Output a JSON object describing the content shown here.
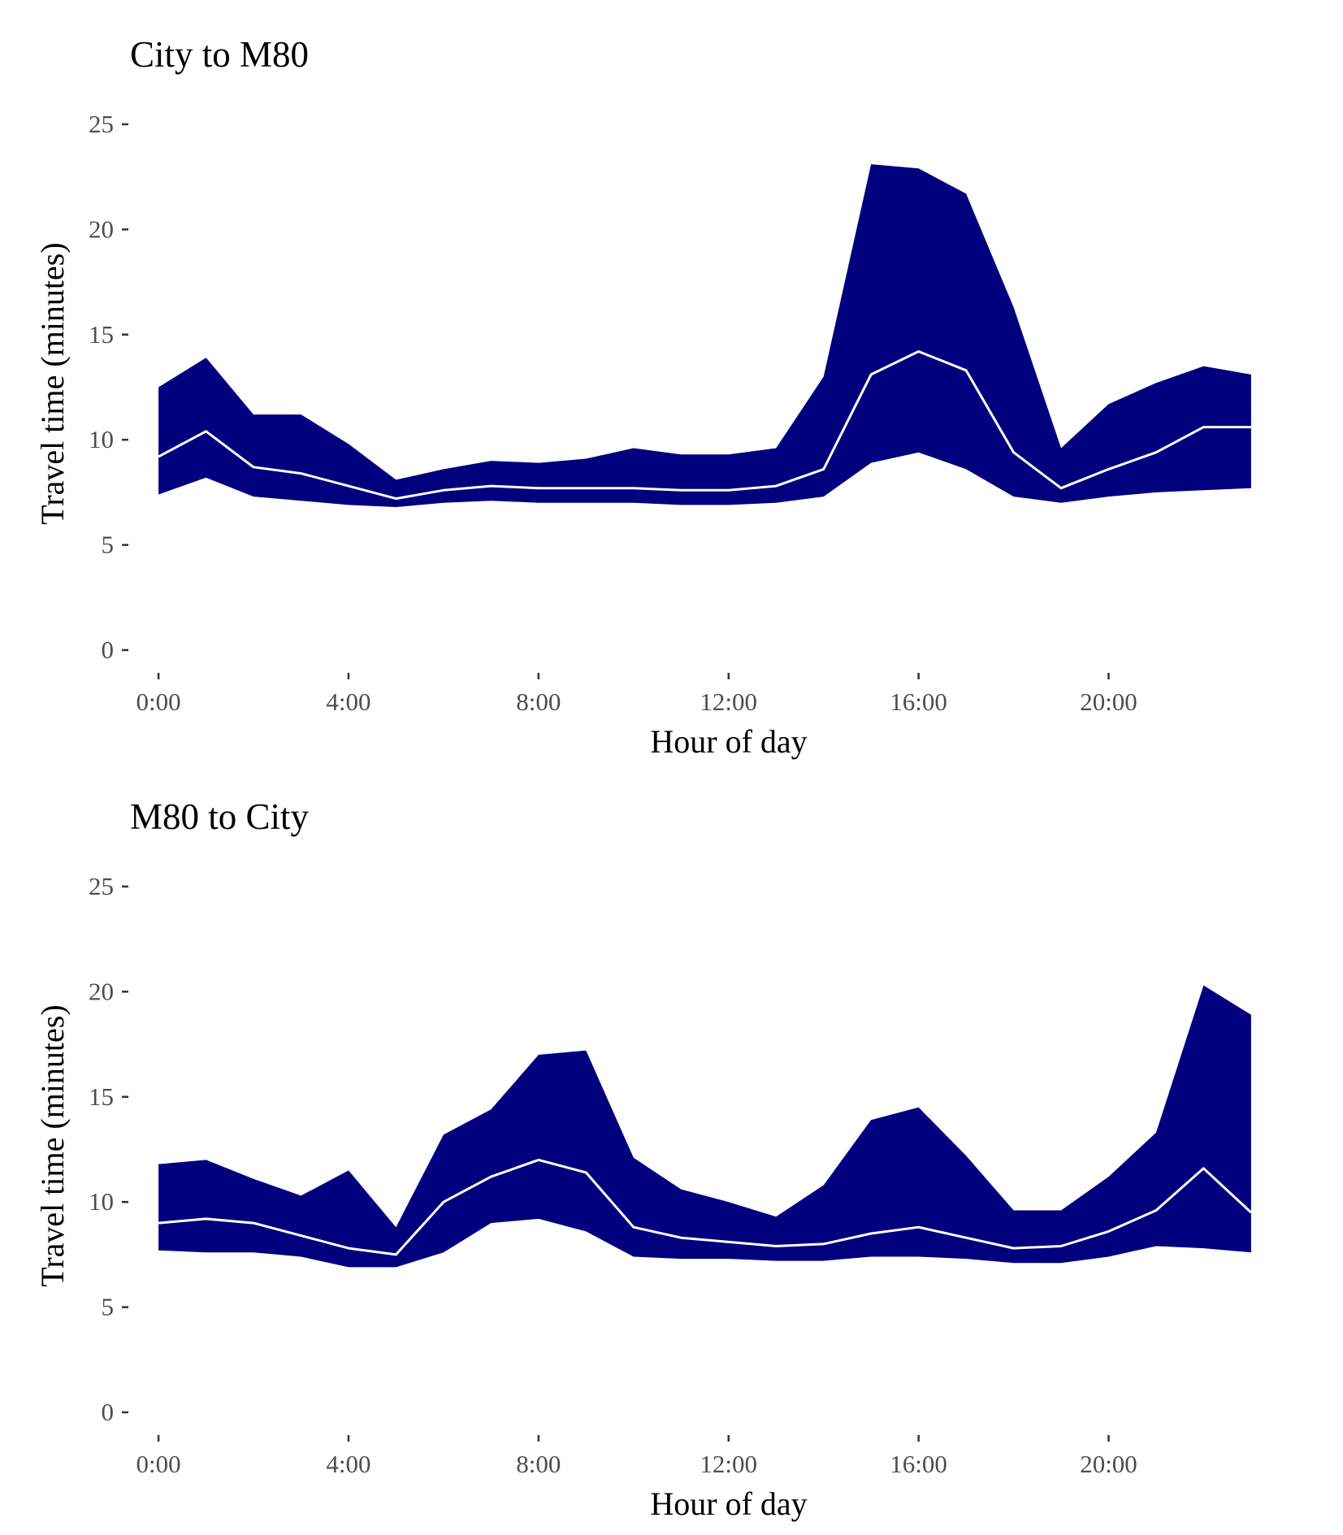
{
  "chart_data": [
    {
      "type": "area",
      "title": "City to M80",
      "xlabel": "Hour of day",
      "ylabel": "Travel time (minutes)",
      "x": [
        0,
        1,
        2,
        3,
        4,
        5,
        6,
        7,
        8,
        9,
        10,
        11,
        12,
        13,
        14,
        15,
        16,
        17,
        18,
        19,
        20,
        21,
        22,
        23
      ],
      "xticks": [
        0,
        4,
        8,
        12,
        16,
        20
      ],
      "xtick_labels": [
        "0:00",
        "4:00",
        "8:00",
        "12:00",
        "16:00",
        "20:00"
      ],
      "yticks": [
        0,
        5,
        10,
        15,
        20,
        25
      ],
      "ytick_labels": [
        "0",
        "5",
        "10",
        "15",
        "20",
        "25"
      ],
      "xlim": [
        -0.6,
        23.6
      ],
      "ylim": [
        0,
        25.5
      ],
      "band_color": "#00007F",
      "line_color": "#ffffff",
      "series": [
        {
          "role": "band-upper",
          "values": [
            12.5,
            13.9,
            11.2,
            11.2,
            9.8,
            8.1,
            8.6,
            9.0,
            8.9,
            9.1,
            9.6,
            9.3,
            9.3,
            9.6,
            13.0,
            23.1,
            22.9,
            21.7,
            16.3,
            9.6,
            11.7,
            12.7,
            13.5,
            13.1
          ]
        },
        {
          "role": "median-line",
          "values": [
            9.2,
            10.4,
            8.7,
            8.4,
            7.8,
            7.2,
            7.6,
            7.8,
            7.7,
            7.7,
            7.7,
            7.6,
            7.6,
            7.8,
            8.6,
            13.1,
            14.2,
            13.3,
            9.4,
            7.7,
            8.6,
            9.4,
            10.6,
            10.6
          ]
        },
        {
          "role": "band-lower",
          "values": [
            7.4,
            8.2,
            7.3,
            7.1,
            6.9,
            6.8,
            7.0,
            7.1,
            7.0,
            7.0,
            7.0,
            6.9,
            6.9,
            7.0,
            7.3,
            8.9,
            9.4,
            8.6,
            7.3,
            7.0,
            7.3,
            7.5,
            7.6,
            7.7
          ]
        }
      ]
    },
    {
      "type": "area",
      "title": "M80 to City",
      "xlabel": "Hour of day",
      "ylabel": "Travel time (minutes)",
      "x": [
        0,
        1,
        2,
        3,
        4,
        5,
        6,
        7,
        8,
        9,
        10,
        11,
        12,
        13,
        14,
        15,
        16,
        17,
        18,
        19,
        20,
        21,
        22,
        23
      ],
      "xticks": [
        0,
        4,
        8,
        12,
        16,
        20
      ],
      "xtick_labels": [
        "0:00",
        "4:00",
        "8:00",
        "12:00",
        "16:00",
        "20:00"
      ],
      "yticks": [
        0,
        5,
        10,
        15,
        20,
        25
      ],
      "ytick_labels": [
        "0",
        "5",
        "10",
        "15",
        "20",
        "25"
      ],
      "xlim": [
        -0.6,
        23.6
      ],
      "ylim": [
        0,
        25.5
      ],
      "band_color": "#00007F",
      "line_color": "#ffffff",
      "series": [
        {
          "role": "band-upper",
          "values": [
            11.8,
            12.0,
            11.1,
            10.3,
            11.5,
            8.8,
            13.2,
            14.4,
            17.0,
            17.2,
            12.1,
            10.6,
            10.0,
            9.3,
            10.8,
            13.9,
            14.5,
            12.2,
            9.6,
            9.6,
            11.2,
            13.3,
            20.3,
            18.9
          ]
        },
        {
          "role": "median-line",
          "values": [
            9.0,
            9.2,
            9.0,
            8.4,
            7.8,
            7.5,
            10.0,
            11.2,
            12.0,
            11.4,
            8.8,
            8.3,
            8.1,
            7.9,
            8.0,
            8.5,
            8.8,
            8.3,
            7.8,
            7.9,
            8.6,
            9.6,
            11.6,
            9.5
          ]
        },
        {
          "role": "band-lower",
          "values": [
            7.7,
            7.6,
            7.6,
            7.4,
            6.9,
            6.9,
            7.6,
            9.0,
            9.2,
            8.6,
            7.4,
            7.3,
            7.3,
            7.2,
            7.2,
            7.4,
            7.4,
            7.3,
            7.1,
            7.1,
            7.4,
            7.9,
            7.8,
            7.6
          ]
        }
      ]
    }
  ]
}
